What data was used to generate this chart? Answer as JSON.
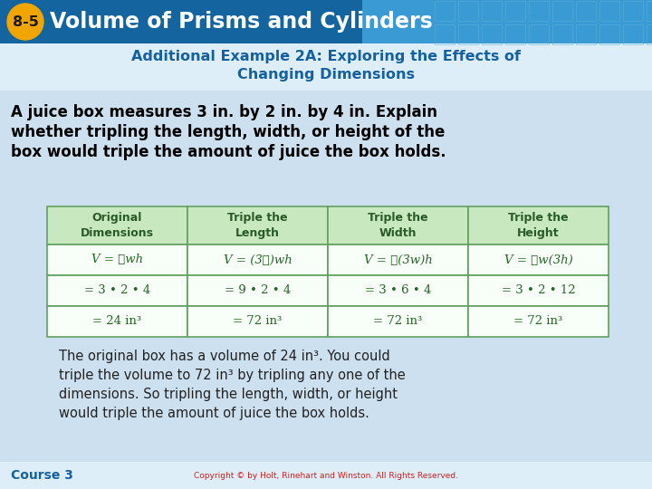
{
  "title_badge": "8-5",
  "title_text": "Volume of Prisms and Cylinders",
  "subtitle_line1": "Additional Example 2A: Exploring the Effects of",
  "subtitle_line2": "Changing Dimensions",
  "problem_text_lines": [
    "A juice box measures 3 in. by 2 in. by 4 in. Explain",
    "whether tripling the length, width, or height of the",
    "box would triple the amount of juice the box holds."
  ],
  "table_headers": [
    "Original\nDimensions",
    "Triple the\nLength",
    "Triple the\nWidth",
    "Triple the\nHeight"
  ],
  "table_col1": [
    "V = ℓwh",
    "= 3 • 2 • 4",
    "= 24 in³"
  ],
  "table_col2": [
    "V = (3ℓ)wh",
    "= 9 • 2 • 4",
    "= 72 in³"
  ],
  "table_col3": [
    "V = ℓ(3w)h",
    "= 3 • 6 • 4",
    "= 72 in³"
  ],
  "table_col4": [
    "V = ℓw(3h)",
    "= 3 • 2 • 12",
    "= 72 in³"
  ],
  "conclusion_lines": [
    "The original box has a volume of 24 in³. You could",
    "triple the volume to 72 in³ by tripling any one of the",
    "dimensions. So tripling the length, width, or height",
    "would triple the amount of juice the box holds."
  ],
  "footer_text": "Course 3",
  "copyright_text": "Copyright © by Holt, Rinehart and Winston. All Rights Reserved.",
  "header_bg_left": "#1464a0",
  "header_bg_right": "#3a9ad4",
  "badge_color": "#f0a500",
  "badge_text_color": "#1a1a1a",
  "title_color": "#ffffff",
  "subtitle_bg": "#ddeef8",
  "subtitle_color": "#1560a0",
  "body_bg": "#cce0f0",
  "problem_color": "#000000",
  "table_header_bg": "#c8e8c0",
  "table_header_color": "#2a5a28",
  "table_body_bg": "#f8fff8",
  "table_border_color": "#60a060",
  "table_text_color": "#226622",
  "conclusion_color": "#222222",
  "footer_color": "#1560a0",
  "footer_red_color": "#cc2222",
  "footer_bg": "#ddeef8"
}
